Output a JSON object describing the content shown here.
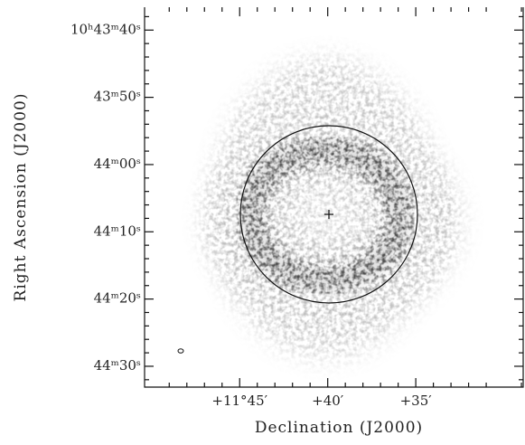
{
  "chart_data": {
    "type": "image",
    "xlabel": "Declination (J2000)",
    "ylabel": "Right Ascension (J2000)",
    "xlim": [
      710.4,
      688.9
    ],
    "ylim": [
      93.1,
      36.6
    ],
    "xticks": [
      {
        "value": 705,
        "label": "+11°45′"
      },
      {
        "value": 700,
        "label": "+40′"
      },
      {
        "value": 695,
        "label": "+35′"
      }
    ],
    "yticks": [
      {
        "value": 40,
        "label": "10ʰ43ᵐ40ˢ"
      },
      {
        "value": 50,
        "label": "43ᵐ50ˢ"
      },
      {
        "value": 60,
        "label": "44ᵐ00ˢ"
      },
      {
        "value": 70,
        "label": "44ᵐ10ˢ"
      },
      {
        "value": 80,
        "label": "44ᵐ20ˢ"
      },
      {
        "value": 90,
        "label": "44ᵐ30ˢ"
      }
    ]
  }
}
